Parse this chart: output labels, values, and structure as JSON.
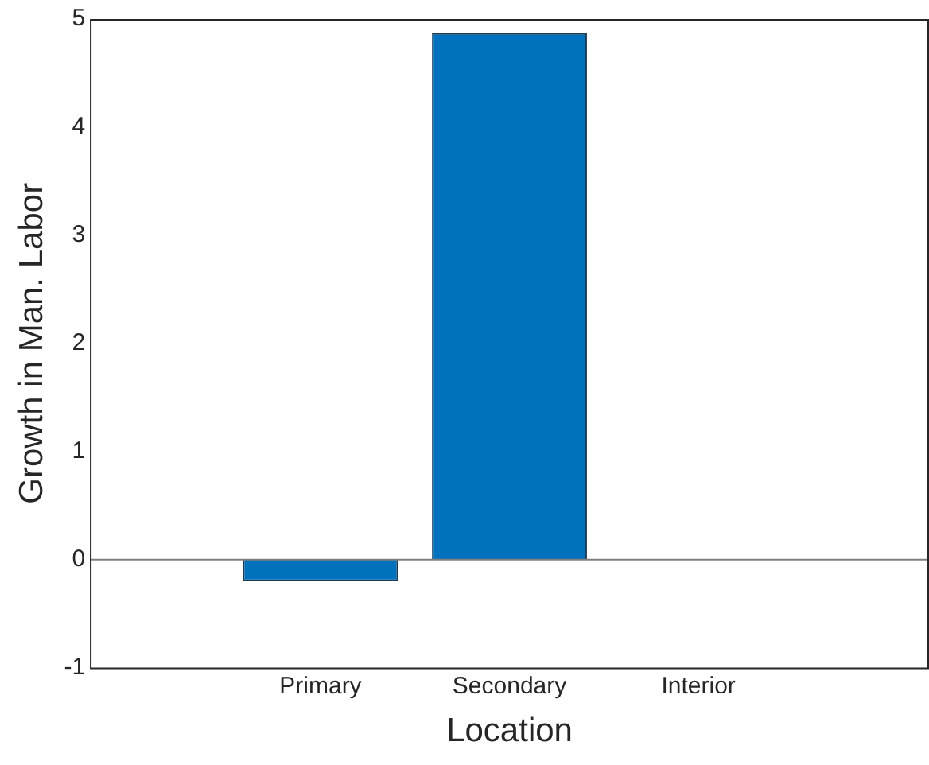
{
  "chart_data": {
    "type": "bar",
    "categories": [
      "Primary",
      "Secondary",
      "Interior"
    ],
    "values": [
      -0.2,
      4.87,
      0
    ],
    "color": "#0072bd",
    "xlabel": "Location",
    "ylabel": "Growth in Man. Labor",
    "ylim": [
      -1,
      5
    ],
    "yticks": [
      -1,
      0,
      1,
      2,
      3,
      4,
      5
    ],
    "grid": false,
    "legend": false,
    "ref_lines": [
      {
        "axis": "y",
        "value": 0,
        "color": "#808080"
      }
    ]
  }
}
